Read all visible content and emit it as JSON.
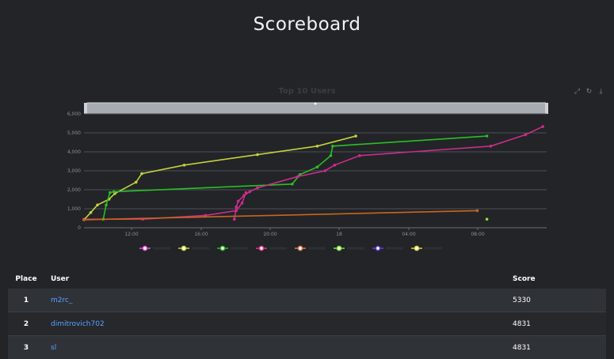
{
  "page": {
    "title": "Scoreboard"
  },
  "chart_data": {
    "type": "line",
    "title": "Top 10 Users",
    "y_ticks": [
      "0",
      "1,000",
      "2,000",
      "3,000",
      "4,000",
      "5,000",
      "6,000"
    ],
    "x_ticks": [
      "12:00",
      "16:00",
      "20:00",
      "18",
      "04:00",
      "08:00"
    ],
    "ylim": [
      0,
      6000
    ],
    "series": [
      {
        "color": "#cc2d8a",
        "points": [
          [
            0.0,
            450
          ],
          [
            3.05,
            450
          ],
          [
            6.3,
            650
          ],
          [
            7.9,
            900
          ],
          [
            8.2,
            1300
          ],
          [
            8.4,
            1850
          ]
        ]
      },
      {
        "color": "#c6d13a",
        "points": [
          [
            0.0,
            420
          ],
          [
            0.35,
            800
          ],
          [
            0.7,
            1200
          ],
          [
            1.3,
            1500
          ],
          [
            1.6,
            1800
          ],
          [
            2.7,
            2400
          ],
          [
            3.0,
            2850
          ],
          [
            5.2,
            3300
          ],
          [
            9.0,
            3850
          ],
          [
            12.1,
            4300
          ],
          [
            14.1,
            4831
          ]
        ]
      },
      {
        "color": "#2bbd26",
        "points": [
          [
            1.0,
            450
          ],
          [
            1.15,
            1200
          ],
          [
            1.35,
            1850
          ],
          [
            1.55,
            1900
          ],
          [
            10.8,
            2300
          ],
          [
            11.2,
            2800
          ],
          [
            12.1,
            3200
          ],
          [
            12.8,
            3800
          ],
          [
            12.9,
            4300
          ],
          [
            20.9,
            4831
          ]
        ]
      },
      {
        "color": "#cc2d8a",
        "points": [
          [
            7.8,
            450
          ],
          [
            7.9,
            1100
          ],
          [
            8.0,
            1400
          ],
          [
            8.3,
            1700
          ],
          [
            8.6,
            1900
          ],
          [
            9.0,
            2100
          ],
          [
            11.1,
            2700
          ],
          [
            12.5,
            3000
          ],
          [
            13.0,
            3300
          ],
          [
            14.3,
            3800
          ],
          [
            21.1,
            4300
          ],
          [
            22.9,
            4900
          ],
          [
            23.8,
            5330
          ]
        ]
      },
      {
        "color": "#c9661c",
        "points": [
          [
            0.0,
            420
          ],
          [
            20.4,
            900
          ]
        ]
      },
      {
        "color": "#8adf3a",
        "points": [
          [
            20.9,
            450
          ]
        ]
      }
    ],
    "legend": [
      {
        "color": "#e24ed0"
      },
      {
        "color": "#c6d13a"
      },
      {
        "color": "#2bbd26"
      },
      {
        "color": "#e0368e"
      },
      {
        "color": "#e07a5a"
      },
      {
        "color": "#7ae03a"
      },
      {
        "color": "#6a3fe0"
      },
      {
        "color": "#d9d53a"
      }
    ]
  },
  "table": {
    "headers": {
      "place": "Place",
      "user": "User",
      "score": "Score"
    },
    "rows": [
      {
        "place": "1",
        "user": "m2rc_",
        "score": "5330"
      },
      {
        "place": "2",
        "user": "dimitrovich702",
        "score": "4831"
      },
      {
        "place": "3",
        "user": "sl",
        "score": "4831"
      }
    ]
  }
}
